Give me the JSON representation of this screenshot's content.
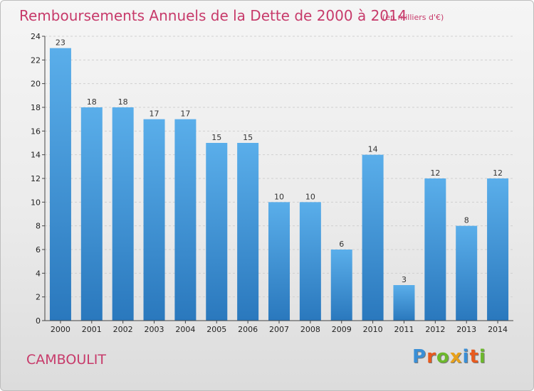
{
  "header": {
    "title": "Remboursements Annuels de la Dette de 2000 à 2014",
    "unit": "(en milliers d'€)"
  },
  "commune": "CAMBOULIT",
  "logo": {
    "text": "Proxiti",
    "letter_colors": [
      "#3a8fd6",
      "#e85a1e",
      "#6cb82c",
      "#e8a11a",
      "#3a8fd6",
      "#e85a1e",
      "#6cb82c"
    ]
  },
  "colors": {
    "bar_top": "#5aaeea",
    "bar_bottom": "#2a78bd",
    "grid": "#d0d0d0"
  },
  "chart_data": {
    "type": "bar",
    "title": "Remboursements Annuels de la Dette de 2000 à 2014",
    "subtitle": "(en milliers d'€)",
    "categories": [
      "2000",
      "2001",
      "2002",
      "2003",
      "2004",
      "2005",
      "2006",
      "2007",
      "2008",
      "2009",
      "2010",
      "2011",
      "2012",
      "2013",
      "2014"
    ],
    "values": [
      23,
      18,
      18,
      17,
      17,
      15,
      15,
      10,
      10,
      6,
      14,
      3,
      12,
      8,
      12
    ],
    "ylim": [
      0,
      24
    ],
    "yticks": [
      0,
      2,
      4,
      6,
      8,
      10,
      12,
      14,
      16,
      18,
      20,
      22,
      24
    ],
    "grid": true,
    "legend": "none"
  }
}
